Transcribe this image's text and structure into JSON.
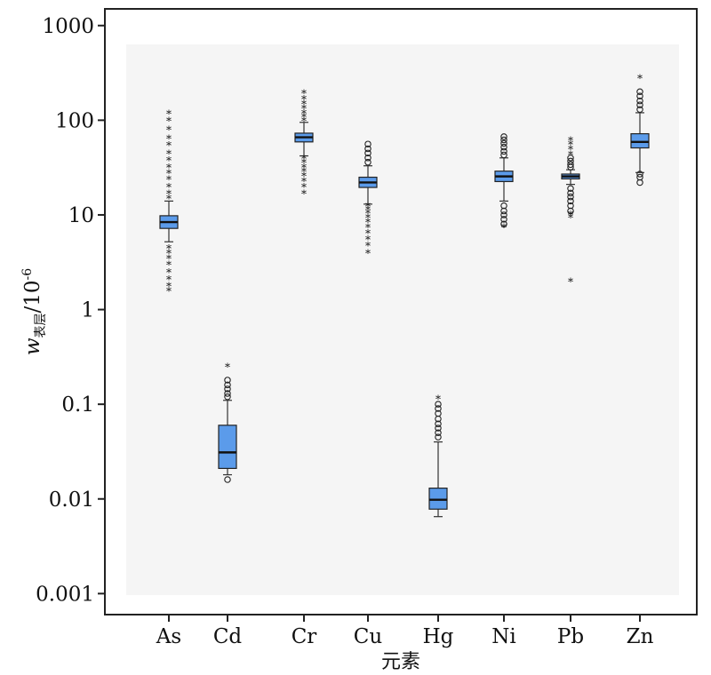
{
  "chart_data": {
    "type": "box",
    "yscale": "log",
    "ylim": [
      0.0006,
      1500
    ],
    "yticks": [
      {
        "value": 1000,
        "label": "1000"
      },
      {
        "value": 100,
        "label": "100"
      },
      {
        "value": 10,
        "label": "10"
      },
      {
        "value": 1,
        "label": "1"
      },
      {
        "value": 0.1,
        "label": "0.1"
      },
      {
        "value": 0.01,
        "label": "0.01"
      },
      {
        "value": 0.001,
        "label": "0.001"
      }
    ],
    "ylabel": {
      "main": "w",
      "subscript": "表层",
      "unit_base": "/10",
      "unit_exp": "-6"
    },
    "xlabel": "元素",
    "box_color": "#5b9bea",
    "categories": [
      "As",
      "Cd",
      "Cr",
      "Cu",
      "Hg",
      "Ni",
      "Pb",
      "Zn"
    ],
    "boxes": [
      {
        "name": "As",
        "whisker_low": 5.2,
        "q1": 7.2,
        "median": 8.4,
        "q3": 9.8,
        "whisker_high": 14,
        "outliers_circle": [],
        "outliers_star": [
          1.6,
          1.8,
          2.1,
          2.5,
          3.0,
          3.5,
          4.0,
          4.5,
          15,
          17,
          20,
          24,
          28,
          32,
          38,
          45,
          55,
          65,
          80,
          100,
          118
        ]
      },
      {
        "name": "Cd",
        "whisker_low": 0.018,
        "q1": 0.021,
        "median": 0.031,
        "q3": 0.06,
        "whisker_high": 0.11,
        "outliers_circle": [
          0.016,
          0.12,
          0.13,
          0.145,
          0.16,
          0.18
        ],
        "outliers_star": [
          0.25
        ]
      },
      {
        "name": "Cr",
        "whisker_low": 42,
        "q1": 59,
        "median": 66,
        "q3": 73,
        "whisker_high": 95,
        "outliers_circle": [],
        "outliers_star": [
          17,
          20,
          23,
          26,
          29,
          32,
          36,
          40,
          100,
          110,
          120,
          135,
          150,
          170,
          195
        ]
      },
      {
        "name": "Cu",
        "whisker_low": 13,
        "q1": 19.5,
        "median": 22,
        "q3": 25,
        "whisker_high": 33,
        "outliers_circle": [
          36,
          40,
          45,
          50,
          56
        ],
        "outliers_star": [
          4.0,
          4.8,
          5.6,
          6.5,
          7.5,
          8.5,
          9.5,
          10.5,
          11.5,
          12.5
        ]
      },
      {
        "name": "Hg",
        "whisker_low": 0.0065,
        "q1": 0.0078,
        "median": 0.0098,
        "q3": 0.013,
        "whisker_high": 0.04,
        "outliers_circle": [
          0.045,
          0.05,
          0.056,
          0.062,
          0.07,
          0.08,
          0.09,
          0.1
        ],
        "outliers_star": [
          0.115
        ]
      },
      {
        "name": "Ni",
        "whisker_low": 14,
        "q1": 22.5,
        "median": 25.5,
        "q3": 29,
        "whisker_high": 40,
        "outliers_circle": [
          8,
          9,
          10,
          11,
          12.5,
          43,
          47,
          52,
          57,
          62,
          67
        ],
        "outliers_star": [
          7.5
        ]
      },
      {
        "name": "Pb",
        "whisker_low": 21,
        "q1": 24,
        "median": 25.5,
        "q3": 27,
        "whisker_high": 30,
        "outliers_circle": [
          11,
          12.5,
          14,
          15.5,
          17,
          19,
          32,
          34,
          37,
          40
        ],
        "outliers_star": [
          2.0,
          9.5,
          10.2,
          44,
          50,
          56,
          62
        ]
      },
      {
        "name": "Zn",
        "whisker_low": 28,
        "q1": 51,
        "median": 59,
        "q3": 72,
        "whisker_high": 120,
        "outliers_circle": [
          22,
          25,
          27,
          130,
          145,
          160,
          180,
          200
        ],
        "outliers_star": [
          280
        ]
      }
    ]
  }
}
